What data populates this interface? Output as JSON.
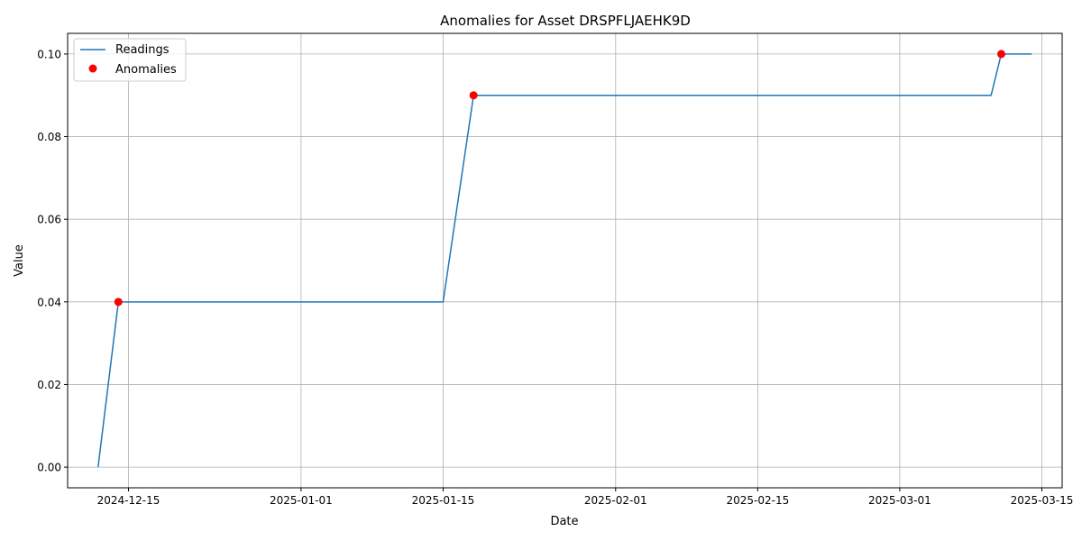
{
  "chart_data": {
    "type": "line",
    "title": "Anomalies for Asset DRSPFLJAEHK9D",
    "xlabel": "Date",
    "ylabel": "Value",
    "x_axis_type": "date",
    "xlim": [
      "2024-12-09",
      "2025-03-17"
    ],
    "ylim": [
      -0.005,
      0.105
    ],
    "x_ticks": [
      "2024-12-15",
      "2025-01-01",
      "2025-01-15",
      "2025-02-01",
      "2025-02-15",
      "2025-03-01",
      "2025-03-15"
    ],
    "y_ticks": [
      0.0,
      0.02,
      0.04,
      0.06,
      0.08,
      0.1
    ],
    "y_tick_labels": [
      "0.00",
      "0.02",
      "0.04",
      "0.06",
      "0.08",
      "0.10"
    ],
    "grid": true,
    "legend_position": "top-left",
    "series": [
      {
        "name": "Readings",
        "type": "line",
        "color": "#1f77b4",
        "points": [
          {
            "x": "2024-12-12",
            "y": 0.0
          },
          {
            "x": "2024-12-14",
            "y": 0.04
          },
          {
            "x": "2025-01-15",
            "y": 0.04
          },
          {
            "x": "2025-01-18",
            "y": 0.09
          },
          {
            "x": "2025-03-10",
            "y": 0.09
          },
          {
            "x": "2025-03-11",
            "y": 0.1
          },
          {
            "x": "2025-03-14",
            "y": 0.1
          }
        ]
      },
      {
        "name": "Anomalies",
        "type": "scatter",
        "color": "#ff0000",
        "points": [
          {
            "x": "2024-12-14",
            "y": 0.04
          },
          {
            "x": "2025-01-18",
            "y": 0.09
          },
          {
            "x": "2025-03-11",
            "y": 0.1
          }
        ]
      }
    ]
  }
}
